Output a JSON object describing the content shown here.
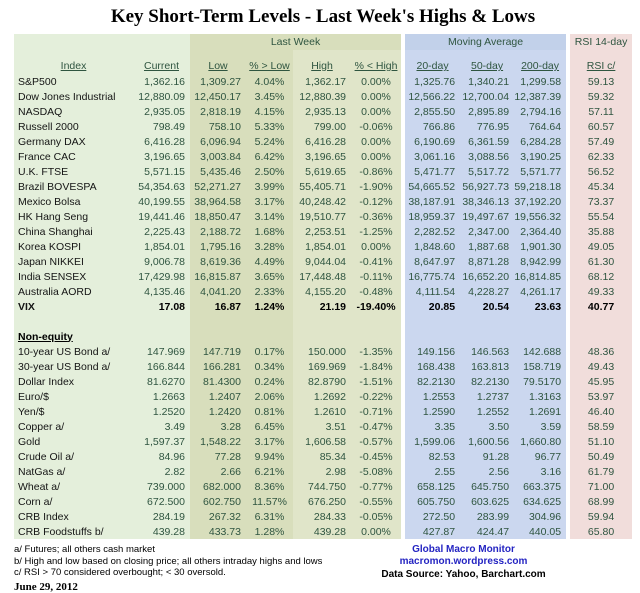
{
  "title": "Key Short-Term Levels -  Last Week's Highs & Lows",
  "chart_data": {
    "type": "table",
    "title": "Key Short-Term Levels -  Last Week's Highs & Lows",
    "column_groups": [
      "Last Week",
      "Moving Average",
      "RSI 14-day"
    ],
    "columns": [
      "Index",
      "Current",
      "Low",
      "% > Low",
      "High",
      "% < High",
      "20-day",
      "50-day",
      "200-day",
      "RSI c/"
    ],
    "sections": [
      {
        "label": "",
        "rows": [
          {
            "label": "S&P500",
            "values": [
              "1,362.16",
              "1,309.27",
              "4.04%",
              "1,362.17",
              "0.00%",
              "1,325.76",
              "1,340.21",
              "1,299.58",
              "59.13"
            ]
          },
          {
            "label": "Dow Jones Industrial",
            "values": [
              "12,880.09",
              "12,450.17",
              "3.45%",
              "12,880.39",
              "0.00%",
              "12,566.22",
              "12,700.04",
              "12,387.39",
              "59.32"
            ]
          },
          {
            "label": "NASDAQ",
            "values": [
              "2,935.05",
              "2,818.19",
              "4.15%",
              "2,935.13",
              "0.00%",
              "2,855.50",
              "2,895.89",
              "2,794.16",
              "57.11"
            ]
          },
          {
            "label": "Russell 2000",
            "values": [
              "798.49",
              "758.10",
              "5.33%",
              "799.00",
              "-0.06%",
              "766.86",
              "776.95",
              "764.64",
              "60.57"
            ]
          },
          {
            "label": "Germany DAX",
            "values": [
              "6,416.28",
              "6,096.94",
              "5.24%",
              "6,416.28",
              "0.00%",
              "6,190.69",
              "6,361.59",
              "6,284.28",
              "57.49"
            ]
          },
          {
            "label": "France CAC",
            "values": [
              "3,196.65",
              "3,003.84",
              "6.42%",
              "3,196.65",
              "0.00%",
              "3,061.16",
              "3,088.56",
              "3,190.25",
              "62.33"
            ]
          },
          {
            "label": "U.K. FTSE",
            "values": [
              "5,571.15",
              "5,435.46",
              "2.50%",
              "5,619.65",
              "-0.86%",
              "5,471.77",
              "5,517.72",
              "5,571.77",
              "56.52"
            ]
          },
          {
            "label": "Brazil BOVESPA",
            "values": [
              "54,354.63",
              "52,271.27",
              "3.99%",
              "55,405.71",
              "-1.90%",
              "54,665.52",
              "56,927.73",
              "59,218.18",
              "45.34"
            ]
          },
          {
            "label": "Mexico Bolsa",
            "values": [
              "40,199.55",
              "38,964.58",
              "3.17%",
              "40,248.42",
              "-0.12%",
              "38,187.91",
              "38,346.13",
              "37,192.20",
              "73.37"
            ]
          },
          {
            "label": "HK Hang Seng",
            "values": [
              "19,441.46",
              "18,850.47",
              "3.14%",
              "19,510.77",
              "-0.36%",
              "18,959.37",
              "19,497.67",
              "19,556.32",
              "55.54"
            ]
          },
          {
            "label": "China Shanghai",
            "values": [
              "2,225.43",
              "2,188.72",
              "1.68%",
              "2,253.51",
              "-1.25%",
              "2,282.52",
              "2,347.00",
              "2,364.40",
              "35.88"
            ]
          },
          {
            "label": "Korea KOSPI",
            "values": [
              "1,854.01",
              "1,795.16",
              "3.28%",
              "1,854.01",
              "0.00%",
              "1,848.60",
              "1,887.68",
              "1,901.30",
              "49.05"
            ]
          },
          {
            "label": "Japan NIKKEI",
            "values": [
              "9,006.78",
              "8,619.36",
              "4.49%",
              "9,044.04",
              "-0.41%",
              "8,647.97",
              "8,871.28",
              "8,942.99",
              "61.30"
            ]
          },
          {
            "label": "India SENSEX",
            "values": [
              "17,429.98",
              "16,815.87",
              "3.65%",
              "17,448.48",
              "-0.11%",
              "16,775.74",
              "16,652.20",
              "16,814.85",
              "68.12"
            ]
          },
          {
            "label": "Australia AORD",
            "values": [
              "4,135.46",
              "4,041.20",
              "2.33%",
              "4,155.20",
              "-0.48%",
              "4,111.54",
              "4,228.27",
              "4,261.17",
              "49.33"
            ]
          },
          {
            "label": "VIX",
            "bold": true,
            "values": [
              "17.08",
              "16.87",
              "1.24%",
              "21.19",
              "-19.40%",
              "20.85",
              "20.54",
              "23.63",
              "40.77"
            ]
          }
        ]
      },
      {
        "label": "Non-equity",
        "rows": [
          {
            "label": "10-year US Bond a/",
            "values": [
              "147.969",
              "147.719",
              "0.17%",
              "150.000",
              "-1.35%",
              "149.156",
              "146.563",
              "142.688",
              "48.36"
            ]
          },
          {
            "label": "30-year US Bond a/",
            "values": [
              "166.844",
              "166.281",
              "0.34%",
              "169.969",
              "-1.84%",
              "168.438",
              "163.813",
              "158.719",
              "49.43"
            ]
          },
          {
            "label": "Dollar Index",
            "values": [
              "81.6270",
              "81.4300",
              "0.24%",
              "82.8790",
              "-1.51%",
              "82.2130",
              "82.2130",
              "79.5170",
              "45.95"
            ]
          },
          {
            "label": "Euro/$",
            "values": [
              "1.2663",
              "1.2407",
              "2.06%",
              "1.2692",
              "-0.22%",
              "1.2553",
              "1.2737",
              "1.3163",
              "53.97"
            ]
          },
          {
            "label": "Yen/$",
            "values": [
              "1.2520",
              "1.2420",
              "0.81%",
              "1.2610",
              "-0.71%",
              "1.2590",
              "1.2552",
              "1.2691",
              "46.40"
            ]
          },
          {
            "label": "Copper a/",
            "values": [
              "3.49",
              "3.28",
              "6.45%",
              "3.51",
              "-0.47%",
              "3.35",
              "3.50",
              "3.59",
              "58.59"
            ]
          },
          {
            "label": "Gold",
            "values": [
              "1,597.37",
              "1,548.22",
              "3.17%",
              "1,606.58",
              "-0.57%",
              "1,599.06",
              "1,600.56",
              "1,660.80",
              "51.10"
            ]
          },
          {
            "label": "Crude Oil a/",
            "values": [
              "84.96",
              "77.28",
              "9.94%",
              "85.34",
              "-0.45%",
              "82.53",
              "91.28",
              "96.77",
              "50.49"
            ]
          },
          {
            "label": "NatGas a/",
            "values": [
              "2.82",
              "2.66",
              "6.21%",
              "2.98",
              "-5.08%",
              "2.55",
              "2.56",
              "3.16",
              "61.79"
            ]
          },
          {
            "label": "Wheat a/",
            "values": [
              "739.000",
              "682.000",
              "8.36%",
              "744.750",
              "-0.77%",
              "658.125",
              "645.750",
              "663.375",
              "71.00"
            ]
          },
          {
            "label": "Corn a/",
            "values": [
              "672.500",
              "602.750",
              "11.57%",
              "676.250",
              "-0.55%",
              "605.750",
              "603.625",
              "634.625",
              "68.99"
            ]
          },
          {
            "label": "CRB Index",
            "values": [
              "284.19",
              "267.32",
              "6.31%",
              "284.33",
              "-0.05%",
              "272.50",
              "283.99",
              "304.96",
              "59.94"
            ]
          },
          {
            "label": "CRB Foodstuffs b/",
            "values": [
              "439.28",
              "433.73",
              "1.28%",
              "439.28",
              "0.00%",
              "427.87",
              "424.47",
              "440.05",
              "65.80"
            ]
          }
        ]
      }
    ]
  },
  "footnotes": [
    "a/ Futures; all others cash market",
    "b/ High and low based on closing price;  all others intraday highs and lows",
    "c/ RSI > 70 considered overbought; < 30 oversold."
  ],
  "date": "June 29, 2012",
  "credit": {
    "name": "Global Macro Monitor",
    "url": "macromon.wordpress.com",
    "source": "Data Source: Yahoo, Barchart.com"
  },
  "colors": {
    "index_bg": "#e4efdb",
    "last_week_bg": "#d8debc",
    "last_week_bg_light": "#e0e5c9",
    "moving_average_bg": "#cbd7ef",
    "rsi_bg": "#f1dddb",
    "number_text": "#2f5540",
    "credit_blue": "#2424c2"
  }
}
